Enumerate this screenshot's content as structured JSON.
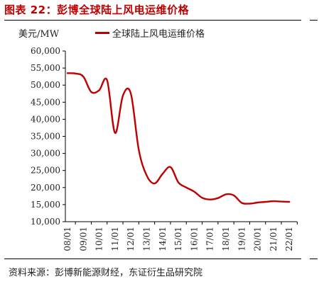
{
  "figure": {
    "title": "图表 22：彭博全球陆上风电运维价格",
    "unit": "美元/MW",
    "source": "资料来源：彭博新能源财经，东证衍生品研究院"
  },
  "chart_data": {
    "type": "line",
    "title": "",
    "xlabel": "",
    "ylabel": "美元/MW",
    "ylim": [
      10000,
      60000
    ],
    "yticks": [
      "10,000",
      "15,000",
      "20,000",
      "25,000",
      "30,000",
      "35,000",
      "40,000",
      "45,000",
      "50,000",
      "55,000",
      "60,000"
    ],
    "ytick_values": [
      10000,
      15000,
      20000,
      25000,
      30000,
      35000,
      40000,
      45000,
      50000,
      55000,
      60000
    ],
    "categories": [
      "08/01",
      "09/01",
      "10/01",
      "11/01",
      "12/01",
      "13/01",
      "14/01",
      "15/01",
      "16/01",
      "17/01",
      "18/01",
      "19/01",
      "20/01",
      "21/01",
      "22/01"
    ],
    "series": [
      {
        "name": "全球陆上风电运维价格",
        "color": "#c00000",
        "x": [
          0,
          0.5,
          1,
          1.5,
          2,
          2.5,
          3,
          3.5,
          4,
          4.5,
          5,
          5.5,
          6,
          6.5,
          7,
          7.5,
          8,
          8.5,
          9,
          9.5,
          10,
          10.5,
          11,
          11.5,
          12,
          12.5,
          13,
          13.5,
          14
        ],
        "values": [
          53500,
          53400,
          52500,
          48000,
          48500,
          51400,
          36000,
          47000,
          47500,
          31000,
          23500,
          21200,
          24000,
          26000,
          21500,
          20000,
          18800,
          17000,
          16500,
          16900,
          18000,
          17700,
          15500,
          15300,
          15600,
          15800,
          16000,
          15900,
          15800
        ]
      }
    ],
    "grid": false,
    "legend": "top"
  }
}
